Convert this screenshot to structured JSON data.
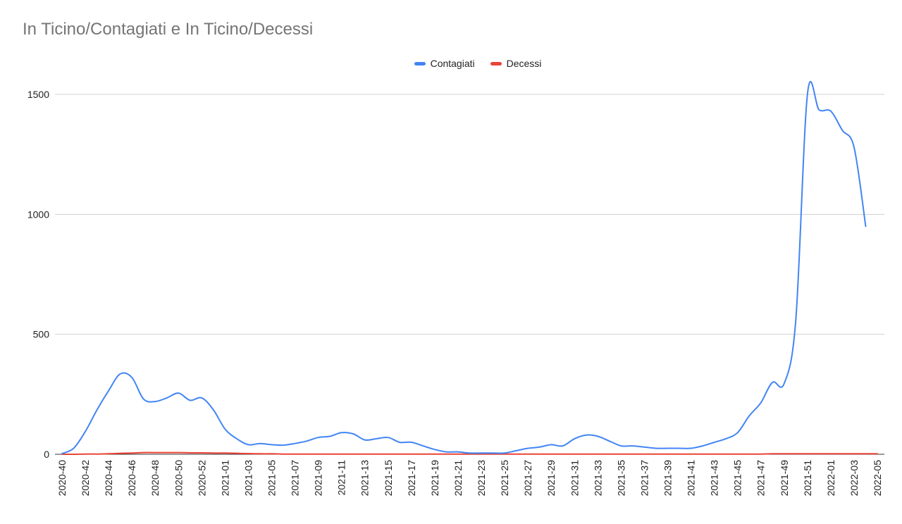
{
  "chart_data": {
    "type": "line",
    "title": "In Ticino/Contagiati e In Ticino/Decessi",
    "xlabel": "",
    "ylabel": "",
    "ylim": [
      0,
      1500
    ],
    "yticks": [
      0,
      500,
      1000,
      1500
    ],
    "grid": true,
    "legend_position": "top",
    "x": [
      "2020-40",
      "2020-41",
      "2020-42",
      "2020-43",
      "2020-44",
      "2020-45",
      "2020-46",
      "2020-47",
      "2020-48",
      "2020-49",
      "2020-50",
      "2020-51",
      "2020-52",
      "2020-53",
      "2021-01",
      "2021-02",
      "2021-03",
      "2021-04",
      "2021-05",
      "2021-06",
      "2021-07",
      "2021-08",
      "2021-09",
      "2021-10",
      "2021-11",
      "2021-12",
      "2021-13",
      "2021-14",
      "2021-15",
      "2021-16",
      "2021-17",
      "2021-18",
      "2021-19",
      "2021-20",
      "2021-21",
      "2021-22",
      "2021-23",
      "2021-24",
      "2021-25",
      "2021-26",
      "2021-27",
      "2021-28",
      "2021-29",
      "2021-30",
      "2021-31",
      "2021-32",
      "2021-33",
      "2021-34",
      "2021-35",
      "2021-36",
      "2021-37",
      "2021-38",
      "2021-39",
      "2021-40",
      "2021-41",
      "2021-42",
      "2021-43",
      "2021-44",
      "2021-45",
      "2021-46",
      "2021-47",
      "2021-48",
      "2021-49",
      "2021-50",
      "2021-51",
      "2021-52",
      "2022-01",
      "2022-02",
      "2022-03",
      "2022-04",
      "2022-05"
    ],
    "xticks_shown": [
      "2020-40",
      "2020-42",
      "2020-44",
      "2020-46",
      "2020-48",
      "2020-50",
      "2020-52",
      "2021-01",
      "2021-03",
      "2021-05",
      "2021-07",
      "2021-09",
      "2021-11",
      "2021-13",
      "2021-15",
      "2021-17",
      "2021-19",
      "2021-21",
      "2021-23",
      "2021-25",
      "2021-27",
      "2021-29",
      "2021-31",
      "2021-33",
      "2021-35",
      "2021-37",
      "2021-39",
      "2021-41",
      "2021-43",
      "2021-45",
      "2021-47",
      "2021-49",
      "2021-51",
      "2022-01",
      "2022-03",
      "2022-05"
    ],
    "series": [
      {
        "name": "Contagiati",
        "color": "#4285f4",
        "values": [
          3,
          25,
          95,
          185,
          265,
          335,
          320,
          230,
          220,
          235,
          255,
          225,
          235,
          185,
          105,
          65,
          40,
          45,
          40,
          38,
          45,
          55,
          70,
          75,
          90,
          85,
          60,
          65,
          70,
          50,
          50,
          35,
          20,
          10,
          10,
          5,
          5,
          5,
          5,
          15,
          25,
          30,
          40,
          35,
          65,
          80,
          75,
          55,
          35,
          35,
          30,
          25,
          25,
          25,
          25,
          35,
          50,
          65,
          90,
          160,
          215,
          300,
          295,
          560,
          1500,
          1435,
          1430,
          1350,
          1280,
          950,
          null
        ]
      },
      {
        "name": "Decessi",
        "color": "#ea4335",
        "values": [
          0,
          0,
          1,
          1,
          2,
          4,
          5,
          7,
          7,
          7,
          7,
          6,
          6,
          5,
          5,
          4,
          3,
          2,
          2,
          1,
          1,
          1,
          1,
          1,
          1,
          1,
          1,
          1,
          1,
          1,
          1,
          1,
          1,
          1,
          1,
          1,
          1,
          1,
          1,
          1,
          1,
          1,
          1,
          1,
          1,
          1,
          1,
          1,
          1,
          1,
          1,
          1,
          1,
          1,
          1,
          1,
          1,
          1,
          1,
          1,
          1,
          2,
          2,
          2,
          2,
          2,
          2,
          2,
          2,
          2,
          2
        ]
      }
    ]
  }
}
